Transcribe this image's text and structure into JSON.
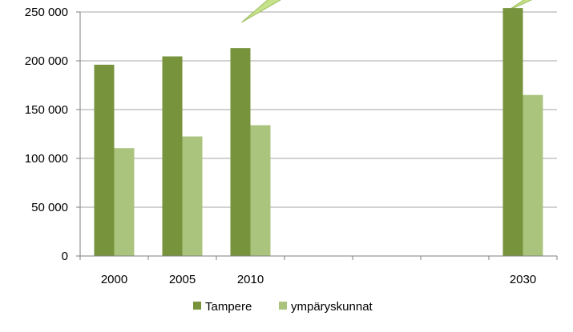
{
  "chart_data": {
    "type": "bar",
    "categories": [
      "2000",
      "2005",
      "2010",
      "",
      "",
      "",
      "2030"
    ],
    "series": [
      {
        "name": "Tampere",
        "values": [
          196000,
          204500,
          213000,
          null,
          null,
          null,
          254000
        ],
        "color": "#77933c"
      },
      {
        "name": "ympäryskunnat",
        "values": [
          110500,
          122500,
          134000,
          null,
          null,
          null,
          165000
        ],
        "color": "#aac47d"
      }
    ],
    "ylim": [
      0,
      250000
    ],
    "yticks": [
      0,
      50000,
      100000,
      150000,
      200000,
      250000
    ],
    "ytick_labels": [
      "0",
      "50 000",
      "100 000",
      "150 000",
      "200 000",
      "250 000"
    ],
    "grid": true,
    "legend_position": "bottom",
    "callout_color": "#c6e28a"
  }
}
